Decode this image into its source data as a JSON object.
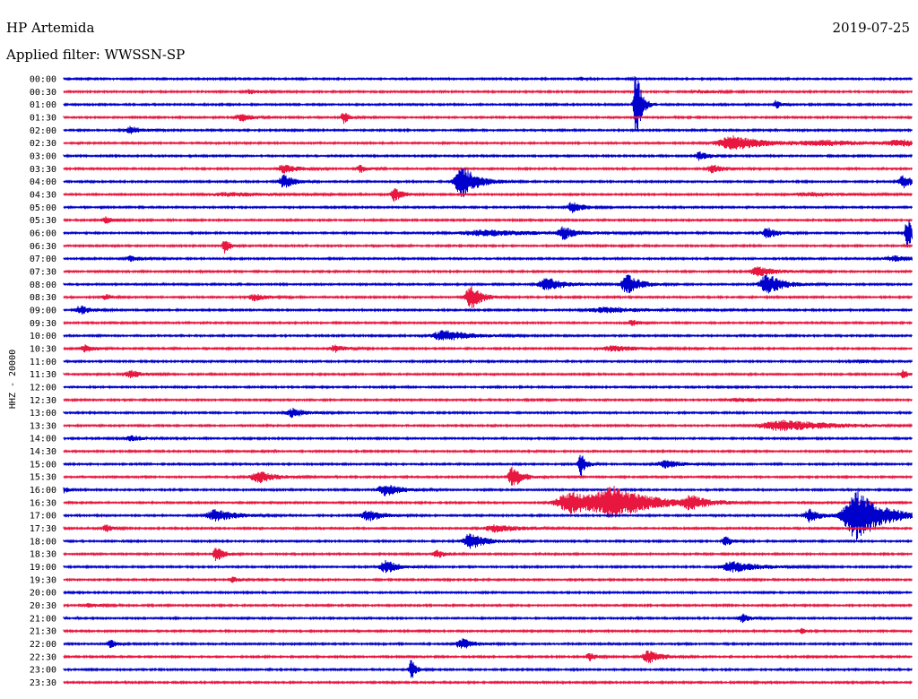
{
  "header": {
    "station": "HP Artemida",
    "date": "2019-07-25",
    "filter": "Applied filter: WWSSN-SP"
  },
  "chart_data": {
    "type": "line",
    "title": "HP Artemida",
    "subtitle": "Applied filter: WWSSN-SP",
    "ylabel": "HHZ - 20000",
    "row_labels": [
      "00:00",
      "00:30",
      "01:00",
      "01:30",
      "02:00",
      "02:30",
      "03:00",
      "03:30",
      "04:00",
      "04:30",
      "05:00",
      "05:30",
      "06:00",
      "06:30",
      "07:00",
      "07:30",
      "08:00",
      "08:30",
      "09:00",
      "09:30",
      "10:00",
      "10:30",
      "11:00",
      "11:30",
      "12:00",
      "12:30",
      "13:00",
      "13:30",
      "14:00",
      "14:30",
      "15:00",
      "15:30",
      "16:00",
      "16:30",
      "17:00",
      "17:30",
      "18:00",
      "18:30",
      "19:00",
      "19:30",
      "20:00",
      "20:30",
      "21:00",
      "21:30",
      "22:00",
      "22:30",
      "23:00",
      "23:30"
    ],
    "colors": [
      "#0000cc",
      "#e8173f"
    ],
    "grid": false,
    "trace_duration_minutes": 30,
    "events": [
      {
        "row": 0,
        "t": 0.61,
        "amp": 2,
        "w": 0.004
      },
      {
        "row": 1,
        "t": 0.22,
        "amp": 2,
        "w": 0.01
      },
      {
        "row": 1,
        "t": 0.75,
        "amp": 1.5,
        "w": 0.015
      },
      {
        "row": 2,
        "t": 0.675,
        "amp": 45,
        "w": 0.004
      },
      {
        "row": 2,
        "t": 0.84,
        "amp": 5,
        "w": 0.004
      },
      {
        "row": 3,
        "t": 0.21,
        "amp": 4,
        "w": 0.01
      },
      {
        "row": 3,
        "t": 0.33,
        "amp": 7,
        "w": 0.004
      },
      {
        "row": 4,
        "t": 0.08,
        "amp": 4,
        "w": 0.01
      },
      {
        "row": 5,
        "t": 0.79,
        "amp": 8,
        "w": 0.025
      },
      {
        "row": 5,
        "t": 0.9,
        "amp": 2.5,
        "w": 0.04
      },
      {
        "row": 5,
        "t": 0.99,
        "amp": 3,
        "w": 0.03
      },
      {
        "row": 6,
        "t": 0.75,
        "amp": 5,
        "w": 0.008
      },
      {
        "row": 7,
        "t": 0.26,
        "amp": 5,
        "w": 0.01
      },
      {
        "row": 7,
        "t": 0.35,
        "amp": 4,
        "w": 0.006
      },
      {
        "row": 7,
        "t": 0.765,
        "amp": 5,
        "w": 0.008
      },
      {
        "row": 8,
        "t": 0.26,
        "amp": 8,
        "w": 0.008
      },
      {
        "row": 8,
        "t": 0.47,
        "amp": 18,
        "w": 0.012
      },
      {
        "row": 8,
        "t": 0.99,
        "amp": 7,
        "w": 0.008
      },
      {
        "row": 9,
        "t": 0.2,
        "amp": 2,
        "w": 0.04
      },
      {
        "row": 9,
        "t": 0.39,
        "amp": 8,
        "w": 0.006
      },
      {
        "row": 9,
        "t": 0.88,
        "amp": 2,
        "w": 0.03
      },
      {
        "row": 10,
        "t": 0.6,
        "amp": 6,
        "w": 0.008
      },
      {
        "row": 11,
        "t": 0.05,
        "amp": 4,
        "w": 0.006
      },
      {
        "row": 12,
        "t": 0.5,
        "amp": 3,
        "w": 0.05
      },
      {
        "row": 12,
        "t": 0.59,
        "amp": 7,
        "w": 0.008
      },
      {
        "row": 12,
        "t": 0.83,
        "amp": 6,
        "w": 0.008
      },
      {
        "row": 12,
        "t": 0.995,
        "amp": 18,
        "w": 0.004
      },
      {
        "row": 13,
        "t": 0.19,
        "amp": 9,
        "w": 0.004
      },
      {
        "row": 14,
        "t": 0.08,
        "amp": 3,
        "w": 0.008
      },
      {
        "row": 14,
        "t": 0.98,
        "amp": 3,
        "w": 0.02
      },
      {
        "row": 15,
        "t": 0.82,
        "amp": 5,
        "w": 0.015
      },
      {
        "row": 16,
        "t": 0.57,
        "amp": 7,
        "w": 0.015
      },
      {
        "row": 16,
        "t": 0.665,
        "amp": 12,
        "w": 0.01
      },
      {
        "row": 16,
        "t": 0.83,
        "amp": 12,
        "w": 0.012
      },
      {
        "row": 17,
        "t": 0.05,
        "amp": 3,
        "w": 0.006
      },
      {
        "row": 17,
        "t": 0.225,
        "amp": 4,
        "w": 0.01
      },
      {
        "row": 17,
        "t": 0.48,
        "amp": 14,
        "w": 0.008
      },
      {
        "row": 18,
        "t": 0.02,
        "amp": 5,
        "w": 0.008
      },
      {
        "row": 18,
        "t": 0.64,
        "amp": 3,
        "w": 0.03
      },
      {
        "row": 19,
        "t": 0.67,
        "amp": 4,
        "w": 0.005
      },
      {
        "row": 20,
        "t": 0.45,
        "amp": 6,
        "w": 0.02
      },
      {
        "row": 21,
        "t": 0.025,
        "amp": 4,
        "w": 0.008
      },
      {
        "row": 21,
        "t": 0.32,
        "amp": 4,
        "w": 0.008
      },
      {
        "row": 21,
        "t": 0.65,
        "amp": 3,
        "w": 0.02
      },
      {
        "row": 22,
        "t": 0.94,
        "amp": 2,
        "w": 0.01
      },
      {
        "row": 23,
        "t": 0.08,
        "amp": 4,
        "w": 0.01
      },
      {
        "row": 23,
        "t": 0.99,
        "amp": 5,
        "w": 0.004
      },
      {
        "row": 25,
        "t": 0.8,
        "amp": 2,
        "w": 0.02
      },
      {
        "row": 26,
        "t": 0.27,
        "amp": 5,
        "w": 0.01
      },
      {
        "row": 27,
        "t": 0.85,
        "amp": 6,
        "w": 0.04
      },
      {
        "row": 28,
        "t": 0.08,
        "amp": 3,
        "w": 0.01
      },
      {
        "row": 30,
        "t": 0.61,
        "amp": 14,
        "w": 0.004
      },
      {
        "row": 30,
        "t": 0.71,
        "amp": 4,
        "w": 0.015
      },
      {
        "row": 31,
        "t": 0.23,
        "amp": 7,
        "w": 0.012
      },
      {
        "row": 31,
        "t": 0.53,
        "amp": 12,
        "w": 0.008
      },
      {
        "row": 32,
        "t": 0.0,
        "amp": 4,
        "w": 0.004
      },
      {
        "row": 32,
        "t": 0.38,
        "amp": 7,
        "w": 0.012
      },
      {
        "row": 33,
        "t": 0.6,
        "amp": 12,
        "w": 0.025
      },
      {
        "row": 33,
        "t": 0.65,
        "amp": 15,
        "w": 0.03
      },
      {
        "row": 33,
        "t": 0.74,
        "amp": 7,
        "w": 0.012
      },
      {
        "row": 34,
        "t": 0.18,
        "amp": 7,
        "w": 0.015
      },
      {
        "row": 34,
        "t": 0.36,
        "amp": 6,
        "w": 0.012
      },
      {
        "row": 34,
        "t": 0.88,
        "amp": 8,
        "w": 0.008
      },
      {
        "row": 34,
        "t": 0.935,
        "amp": 30,
        "w": 0.02
      },
      {
        "row": 35,
        "t": 0.05,
        "amp": 4,
        "w": 0.006
      },
      {
        "row": 35,
        "t": 0.51,
        "amp": 4,
        "w": 0.02
      },
      {
        "row": 36,
        "t": 0.48,
        "amp": 9,
        "w": 0.012
      },
      {
        "row": 36,
        "t": 0.78,
        "amp": 6,
        "w": 0.005
      },
      {
        "row": 37,
        "t": 0.18,
        "amp": 8,
        "w": 0.006
      },
      {
        "row": 37,
        "t": 0.44,
        "amp": 5,
        "w": 0.006
      },
      {
        "row": 38,
        "t": 0.38,
        "amp": 7,
        "w": 0.01
      },
      {
        "row": 38,
        "t": 0.79,
        "amp": 6,
        "w": 0.02
      },
      {
        "row": 39,
        "t": 0.2,
        "amp": 3,
        "w": 0.006
      },
      {
        "row": 41,
        "t": 0.03,
        "amp": 2,
        "w": 0.01
      },
      {
        "row": 42,
        "t": 0.8,
        "amp": 5,
        "w": 0.006
      },
      {
        "row": 43,
        "t": 0.87,
        "amp": 3,
        "w": 0.004
      },
      {
        "row": 44,
        "t": 0.055,
        "amp": 5,
        "w": 0.004
      },
      {
        "row": 44,
        "t": 0.47,
        "amp": 6,
        "w": 0.01
      },
      {
        "row": 45,
        "t": 0.62,
        "amp": 5,
        "w": 0.005
      },
      {
        "row": 45,
        "t": 0.69,
        "amp": 7,
        "w": 0.01
      },
      {
        "row": 46,
        "t": 0.41,
        "amp": 11,
        "w": 0.004
      }
    ]
  }
}
